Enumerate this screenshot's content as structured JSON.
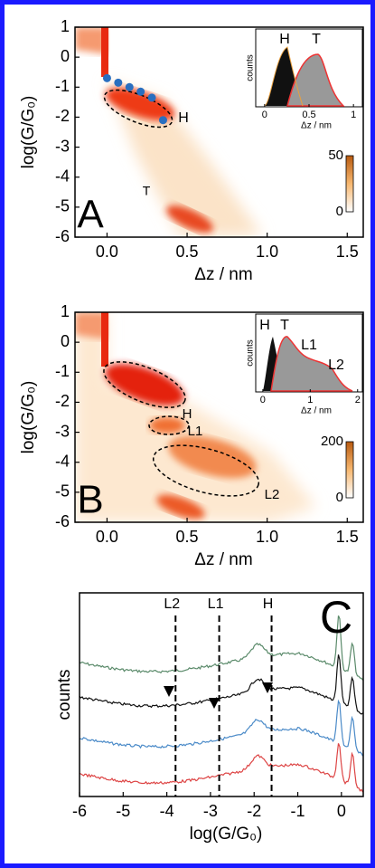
{
  "chart_data": [
    {
      "type": "heatmap",
      "xlabel": "Δz / nm",
      "ylabel": "log(G/G₀)",
      "xlim": [
        -0.2,
        1.6
      ],
      "ylim": [
        -6,
        1
      ],
      "xticks": [
        {
          "value": 0,
          "label": "0.0"
        },
        {
          "value": 0.5,
          "label": "0.5"
        },
        {
          "value": 1,
          "label": "1.0"
        },
        {
          "value": 1.5,
          "label": "1.5"
        }
      ],
      "yticks": [
        1,
        0,
        -1,
        -2,
        -3,
        -4,
        -5,
        -6
      ],
      "annotations": [
        "A",
        "H",
        "T"
      ],
      "series": [
        {
          "type": "scatter",
          "color": "#2a6fc0",
          "x": [
            0,
            0.07,
            0.14,
            0.21,
            0.28,
            0.35
          ],
          "y": [
            -0.7,
            -0.85,
            -1.0,
            -1.15,
            -1.35,
            -2.1
          ]
        }
      ],
      "colorbar": {
        "ticks": [
          50,
          0
        ]
      },
      "inset": {
        "xlabel": "Δz / nm",
        "ylabel": "counts",
        "xlim": [
          -0.1,
          1.1
        ],
        "xticks": [
          0,
          0.5,
          1
        ],
        "annotations": [
          "H",
          "T"
        ]
      }
    },
    {
      "type": "heatmap",
      "xlabel": "Δz / nm",
      "ylabel": "log(G/G₀)",
      "xlim": [
        -0.2,
        1.6
      ],
      "ylim": [
        -6,
        1
      ],
      "xticks": [
        {
          "value": 0,
          "label": "0.0"
        },
        {
          "value": 0.5,
          "label": "0.5"
        },
        {
          "value": 1,
          "label": "1.0"
        },
        {
          "value": 1.5,
          "label": "1.5"
        }
      ],
      "yticks": [
        1,
        0,
        -1,
        -2,
        -3,
        -4,
        -5,
        -6
      ],
      "annotations": [
        "B",
        "H",
        "L1",
        "L2"
      ],
      "colorbar": {
        "ticks": [
          200,
          0
        ]
      },
      "inset": {
        "xlabel": "Δz / nm",
        "ylabel": "counts",
        "xlim": [
          -0.15,
          2.1
        ],
        "xticks": [
          0,
          1,
          2
        ],
        "annotations": [
          "H",
          "T",
          "L1",
          "L2"
        ]
      }
    },
    {
      "type": "line",
      "xlabel": "log(G/G₀)",
      "ylabel": "counts",
      "xlim": [
        -6,
        0.5
      ],
      "xticks": [
        -6,
        -5,
        -4,
        -3,
        -2,
        -1,
        0
      ],
      "annotations": [
        "C"
      ],
      "vlines": [
        {
          "label": "L2",
          "x": -3.8
        },
        {
          "label": "L1",
          "x": -2.8
        },
        {
          "label": "H",
          "x": -1.6
        }
      ]
    }
  ]
}
